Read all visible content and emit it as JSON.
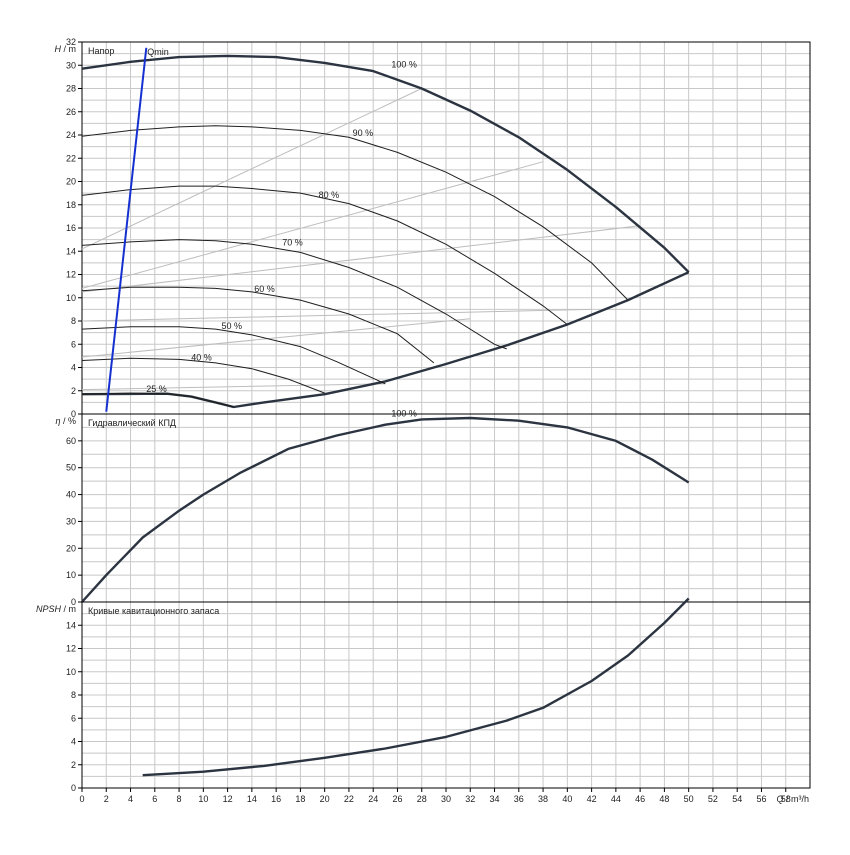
{
  "chart_data": [
    {
      "type": "line",
      "panel": "head",
      "title": "Напор",
      "ylabel_symbol": "H",
      "ylabel_unit": "/ m",
      "ylim": [
        0,
        32
      ],
      "y_ticks": [
        "0",
        "2",
        "4",
        "6",
        "8",
        "10",
        "12",
        "14",
        "16",
        "18",
        "20",
        "22",
        "24",
        "26",
        "28",
        "30",
        "32"
      ],
      "xlim": [
        0,
        60
      ],
      "grid": true,
      "qmin_label": "Qmin",
      "qmin_line": [
        [
          2,
          0.2
        ],
        [
          5.3,
          31.5
        ]
      ],
      "speed_curves": [
        {
          "label": "100 %",
          "label_at": [
            25.5,
            29.8
          ],
          "bold": true,
          "points": [
            [
              0,
              29.7
            ],
            [
              4,
              30.3
            ],
            [
              8,
              30.7
            ],
            [
              12,
              30.8
            ],
            [
              16,
              30.7
            ],
            [
              20,
              30.2
            ],
            [
              24,
              29.5
            ],
            [
              28,
              28.0
            ],
            [
              32,
              26.1
            ],
            [
              36,
              23.8
            ],
            [
              40,
              21.0
            ],
            [
              44,
              17.8
            ],
            [
              48,
              14.3
            ],
            [
              50,
              12.2
            ]
          ]
        },
        {
          "label": "90 %",
          "label_at": [
            22.3,
            23.9
          ],
          "bold": false,
          "points": [
            [
              0,
              23.9
            ],
            [
              4,
              24.4
            ],
            [
              8,
              24.7
            ],
            [
              11,
              24.8
            ],
            [
              14,
              24.7
            ],
            [
              18,
              24.4
            ],
            [
              22,
              23.8
            ],
            [
              26,
              22.5
            ],
            [
              30,
              20.8
            ],
            [
              34,
              18.7
            ],
            [
              38,
              16.1
            ],
            [
              42,
              13.0
            ],
            [
              45,
              9.8
            ]
          ]
        },
        {
          "label": "90 %",
          "label_at": [
            0,
            0
          ],
          "bold": false,
          "hidden_label": true,
          "points": []
        },
        {
          "label": "80 %",
          "label_at": [
            19.5,
            18.6
          ],
          "bold": false,
          "points": [
            [
              0,
              18.8
            ],
            [
              4,
              19.3
            ],
            [
              8,
              19.6
            ],
            [
              11,
              19.6
            ],
            [
              14,
              19.4
            ],
            [
              18,
              19.0
            ],
            [
              22,
              18.1
            ],
            [
              26,
              16.6
            ],
            [
              30,
              14.6
            ],
            [
              34,
              12.1
            ],
            [
              38,
              9.3
            ],
            [
              40,
              7.7
            ]
          ]
        },
        {
          "label": "70 %",
          "label_at": [
            16.5,
            14.5
          ],
          "bold": false,
          "points": [
            [
              0,
              14.5
            ],
            [
              4,
              14.8
            ],
            [
              8,
              15.0
            ],
            [
              11,
              14.9
            ],
            [
              14,
              14.6
            ],
            [
              18,
              13.9
            ],
            [
              22,
              12.6
            ],
            [
              26,
              10.9
            ],
            [
              30,
              8.6
            ],
            [
              34,
              6.0
            ],
            [
              35,
              5.6
            ]
          ]
        },
        {
          "label": "60 %",
          "label_at": [
            14.2,
            10.5
          ],
          "bold": false,
          "points": [
            [
              0,
              10.6
            ],
            [
              4,
              10.9
            ],
            [
              8,
              10.9
            ],
            [
              11,
              10.8
            ],
            [
              14,
              10.5
            ],
            [
              18,
              9.8
            ],
            [
              22,
              8.6
            ],
            [
              26,
              6.9
            ],
            [
              29,
              4.4
            ]
          ]
        },
        {
          "label": "50 %",
          "label_at": [
            11.5,
            7.3
          ],
          "bold": false,
          "points": [
            [
              0,
              7.3
            ],
            [
              4,
              7.5
            ],
            [
              8,
              7.5
            ],
            [
              11,
              7.3
            ],
            [
              14,
              6.8
            ],
            [
              18,
              5.8
            ],
            [
              21,
              4.5
            ],
            [
              25,
              2.6
            ]
          ]
        },
        {
          "label": "40 %",
          "label_at": [
            9.0,
            4.6
          ],
          "bold": false,
          "points": [
            [
              0,
              4.6
            ],
            [
              4,
              4.8
            ],
            [
              8,
              4.7
            ],
            [
              11,
              4.4
            ],
            [
              14,
              3.9
            ],
            [
              17,
              3.0
            ],
            [
              20,
              1.8
            ]
          ]
        },
        {
          "label": "25 %",
          "label_at": [
            5.3,
            1.9
          ],
          "bold": false,
          "points": [
            [
              0,
              1.7
            ],
            [
              4,
              1.8
            ],
            [
              7,
              1.75
            ],
            [
              9,
              1.5
            ],
            [
              11,
              1.0
            ],
            [
              12.5,
              0.6
            ]
          ]
        }
      ],
      "system_curve": [
        [
          0,
          1.7
        ],
        [
          7,
          1.75
        ],
        [
          9,
          1.5
        ],
        [
          11,
          1.0
        ],
        [
          12.5,
          0.6
        ],
        [
          15,
          1.0
        ],
        [
          20,
          1.7
        ],
        [
          25,
          2.8
        ],
        [
          30,
          4.3
        ],
        [
          35,
          5.9
        ],
        [
          40,
          7.7
        ],
        [
          45,
          9.8
        ],
        [
          50,
          12.2
        ]
      ],
      "efficiency_lines": [
        [
          [
            0,
            14.2
          ],
          [
            28,
            28.0
          ]
        ],
        [
          [
            0,
            10.8
          ],
          [
            38,
            21.7
          ]
        ],
        [
          [
            0,
            10.5
          ],
          [
            46,
            16.2
          ]
        ],
        [
          [
            0,
            8.0
          ],
          [
            42,
            9.0
          ]
        ],
        [
          [
            0,
            4.9
          ],
          [
            32,
            8.2
          ]
        ],
        [
          [
            0,
            2.1
          ],
          [
            25,
            2.6
          ]
        ]
      ]
    },
    {
      "type": "line",
      "panel": "efficiency",
      "title": "Гидравлический КПД",
      "ylabel_symbol": "η",
      "ylabel_unit": "/ %",
      "ylim": [
        0,
        70
      ],
      "y_ticks": [
        "0",
        "10",
        "20",
        "30",
        "40",
        "50",
        "60"
      ],
      "xlim": [
        0,
        60
      ],
      "grid": true,
      "series": [
        {
          "label": "100 %",
          "label_at": [
            25.5,
            69.0
          ],
          "points": [
            [
              0,
              0
            ],
            [
              2,
              10
            ],
            [
              5,
              24
            ],
            [
              8,
              34
            ],
            [
              10,
              40
            ],
            [
              13,
              48
            ],
            [
              17,
              57
            ],
            [
              21,
              62
            ],
            [
              25,
              66
            ],
            [
              28,
              68
            ],
            [
              32,
              68.5
            ],
            [
              36,
              67.5
            ],
            [
              40,
              65
            ],
            [
              44,
              60
            ],
            [
              47,
              53
            ],
            [
              50,
              44.5
            ]
          ]
        }
      ]
    },
    {
      "type": "line",
      "panel": "npsh",
      "title": "Кривые кавитационного запаса",
      "ylabel_symbol": "NPSH",
      "ylabel_unit": "/ m",
      "ylim": [
        0,
        16
      ],
      "y_ticks": [
        "0",
        "2",
        "4",
        "6",
        "8",
        "10",
        "12",
        "14"
      ],
      "xlim": [
        0,
        60
      ],
      "xlabel_symbol": "Q",
      "xlabel_unit": "/ m³/h",
      "x_ticks": [
        "0",
        "2",
        "4",
        "6",
        "8",
        "10",
        "12",
        "14",
        "16",
        "18",
        "20",
        "22",
        "24",
        "26",
        "28",
        "30",
        "32",
        "34",
        "36",
        "38",
        "40",
        "42",
        "44",
        "46",
        "48",
        "50",
        "52",
        "54",
        "56",
        "58"
      ],
      "grid": true,
      "series": [
        {
          "points": [
            [
              5,
              1.1
            ],
            [
              10,
              1.4
            ],
            [
              15,
              1.9
            ],
            [
              20,
              2.6
            ],
            [
              25,
              3.4
            ],
            [
              30,
              4.4
            ],
            [
              35,
              5.8
            ],
            [
              38,
              6.9
            ],
            [
              42,
              9.2
            ],
            [
              45,
              11.4
            ],
            [
              48,
              14.2
            ],
            [
              50,
              16.3
            ]
          ]
        }
      ]
    }
  ]
}
